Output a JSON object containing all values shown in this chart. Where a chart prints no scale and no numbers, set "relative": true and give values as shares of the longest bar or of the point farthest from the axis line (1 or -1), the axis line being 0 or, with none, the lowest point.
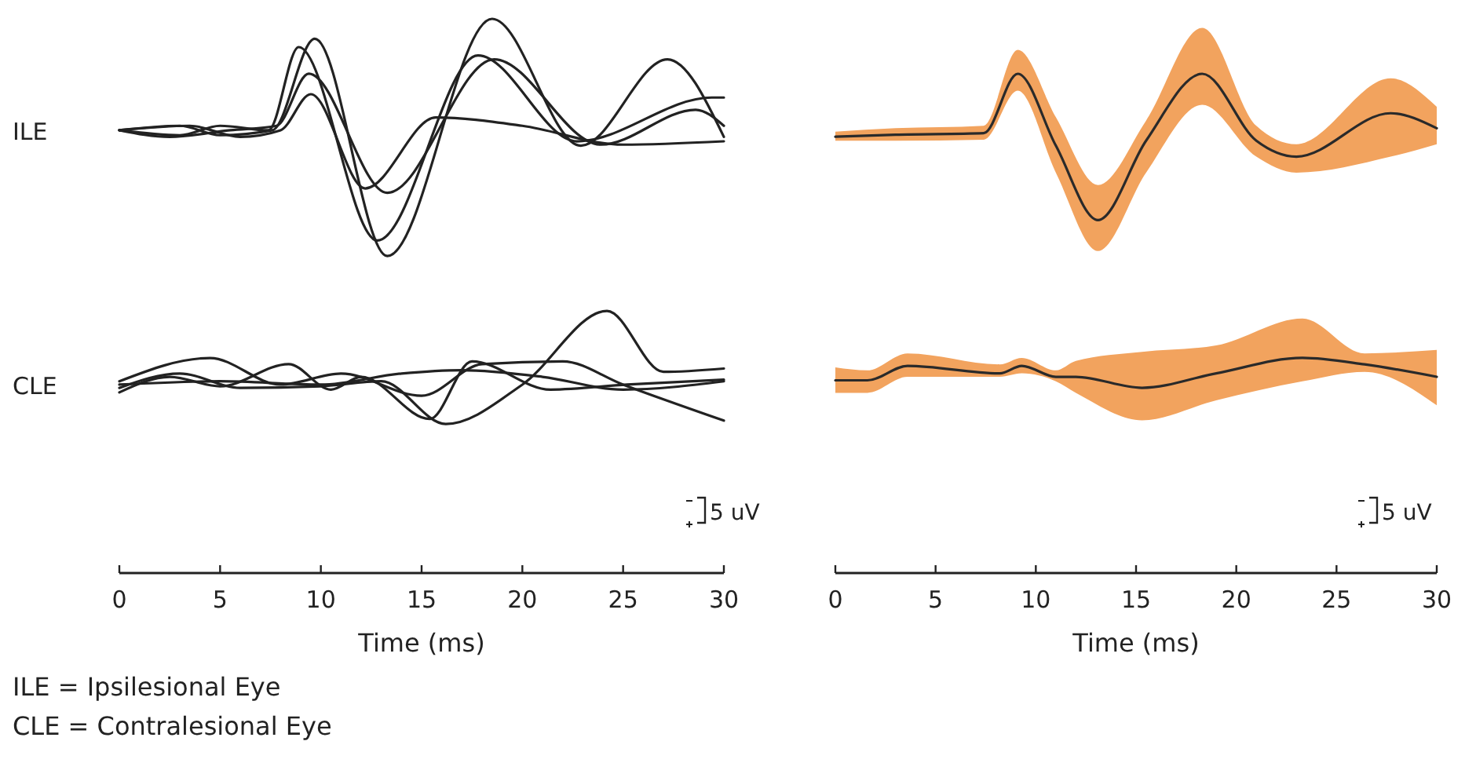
{
  "chart_data": [
    {
      "type": "line",
      "relative": true,
      "xlabel": "Time (ms)",
      "xlim": [
        0,
        30
      ],
      "xticks": [
        0,
        5,
        10,
        15,
        20,
        25,
        30
      ],
      "annotations": [
        "ILE",
        "CLE",
        "5 uV",
        "ILE = Ipsilesional Eye",
        "CLE = Contralesional Eye"
      ],
      "series": [
        {
          "color": "#222222",
          "x": [
            0,
            3,
            5,
            7.6,
            9.7,
            13.3,
            18.5,
            22.9,
            27.2,
            30
          ],
          "values": [
            0.799,
            0.807,
            0.79,
            0.799,
            0.964,
            0.572,
            1.0,
            0.771,
            0.927,
            0.787
          ]
        },
        {
          "color": "#222222",
          "x": [
            0,
            3,
            5,
            7.4,
            8.9,
            12.8,
            17.8,
            22.7,
            29.4,
            30
          ],
          "values": [
            0.799,
            0.79,
            0.807,
            0.799,
            0.949,
            0.6,
            0.934,
            0.779,
            0.858,
            0.858
          ]
        },
        {
          "color": "#222222",
          "x": [
            0,
            2.5,
            5.5,
            7.8,
            9.4,
            13.3,
            18.6,
            23.9,
            28.6,
            30
          ],
          "values": [
            0.799,
            0.787,
            0.799,
            0.807,
            0.901,
            0.686,
            0.927,
            0.773,
            0.836,
            0.807
          ]
        },
        {
          "color": "#222222",
          "x": [
            0,
            3.5,
            6,
            8,
            9.5,
            12.2,
            15.7,
            20,
            25,
            30
          ],
          "values": [
            0.799,
            0.807,
            0.787,
            0.799,
            0.864,
            0.694,
            0.822,
            0.807,
            0.773,
            0.779
          ]
        },
        {
          "color": "#222222",
          "x": [
            0,
            3,
            6,
            10,
            13,
            16.2,
            20,
            24.2,
            27,
            30
          ],
          "values": [
            0.334,
            0.36,
            0.334,
            0.337,
            0.346,
            0.269,
            0.34,
            0.473,
            0.363,
            0.369
          ]
        },
        {
          "color": "#222222",
          "x": [
            0,
            4.5,
            8,
            11,
            15,
            18,
            22,
            25,
            30
          ],
          "values": [
            0.346,
            0.388,
            0.34,
            0.36,
            0.32,
            0.377,
            0.382,
            0.34,
            0.275
          ]
        },
        {
          "color": "#222222",
          "x": [
            0,
            2.5,
            5,
            8.4,
            10.5,
            12,
            15.4,
            17.5,
            21.4,
            25.2,
            30
          ],
          "values": [
            0.326,
            0.354,
            0.337,
            0.377,
            0.331,
            0.354,
            0.278,
            0.382,
            0.331,
            0.34,
            0.349
          ]
        },
        {
          "color": "#222222",
          "x": [
            0,
            5,
            10,
            14,
            17,
            21,
            25,
            30
          ],
          "values": [
            0.34,
            0.346,
            0.34,
            0.36,
            0.366,
            0.354,
            0.331,
            0.346
          ]
        }
      ]
    },
    {
      "type": "line",
      "relative": true,
      "xlabel": "Time (ms)",
      "xlim": [
        0,
        30
      ],
      "xticks": [
        0,
        5,
        10,
        15,
        20,
        25,
        30
      ],
      "annotations": [
        "5 uV"
      ],
      "series": [
        {
          "color": "#2a2a2a",
          "x": [
            0,
            3,
            7.4,
            9.1,
            11,
            13.1,
            15.5,
            18.3,
            21,
            23,
            27.7,
            30
          ],
          "values": [
            0.874,
            0.878,
            0.881,
            1.0,
            0.856,
            0.707,
            0.866,
            1.0,
            0.866,
            0.834,
            0.921,
            0.891
          ],
          "upper": [
            0.884,
            0.891,
            0.896,
            1.048,
            0.913,
            0.777,
            0.906,
            1.092,
            0.896,
            0.859,
            0.991,
            0.934
          ],
          "lower": [
            0.866,
            0.866,
            0.868,
            0.966,
            0.802,
            0.645,
            0.802,
            0.938,
            0.834,
            0.802,
            0.834,
            0.859
          ]
        },
        {
          "color": "#2a2a2a",
          "x": [
            0,
            1.6,
            3.6,
            8.2,
            9.3,
            11,
            12,
            15.3,
            19,
            23.3,
            26.4,
            30
          ],
          "values": [
            0.386,
            0.386,
            0.415,
            0.4,
            0.415,
            0.393,
            0.393,
            0.371,
            0.4,
            0.431,
            0.418,
            0.393
          ],
          "upper": [
            0.412,
            0.406,
            0.44,
            0.418,
            0.431,
            0.406,
            0.425,
            0.443,
            0.456,
            0.51,
            0.44,
            0.447
          ],
          "lower": [
            0.361,
            0.361,
            0.393,
            0.393,
            0.4,
            0.384,
            0.361,
            0.306,
            0.346,
            0.384,
            0.403,
            0.336
          ]
        }
      ]
    }
  ]
}
